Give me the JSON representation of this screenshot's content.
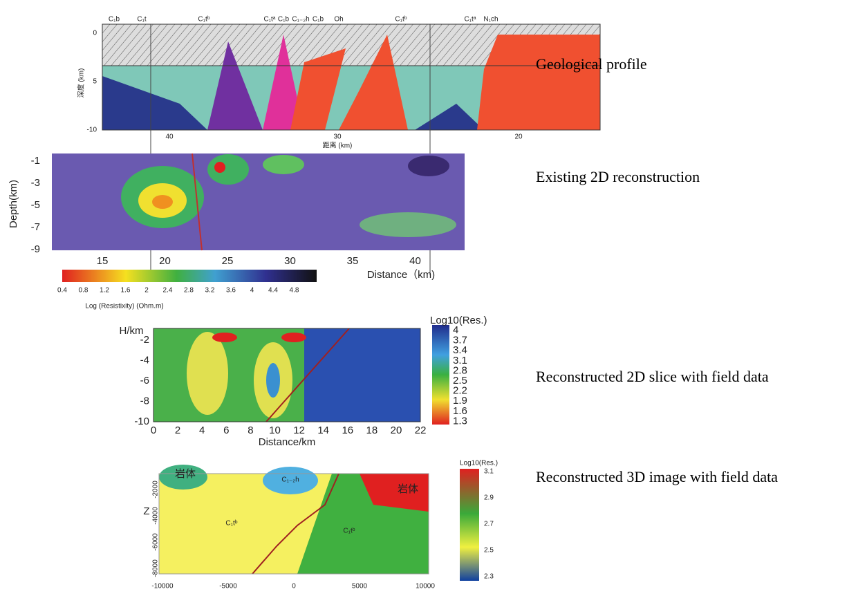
{
  "panels": [
    {
      "caption": "Geological profile",
      "y_axis_label": "深度 (km)",
      "x_axis_label": "距离 (km)",
      "y_ticks": [
        "0",
        "5",
        "-10"
      ],
      "x_ticks": [
        "40",
        "30",
        "20"
      ],
      "annotations": [
        "C₁b",
        "C₁t",
        "C₁tᵇ",
        "C₁tᵃ",
        "C₁b",
        "C₁₋₂h",
        "C₁b",
        "Oh",
        "C₁tᵇ",
        "C₁tᵃ",
        "N₁ch"
      ]
    },
    {
      "caption": "Existing 2D reconstruction",
      "y_axis_label": "Depth(km)",
      "x_axis_label": "Distance（km)",
      "y_ticks": [
        "-1",
        "-3",
        "-5",
        "-7",
        "-9"
      ],
      "x_ticks": [
        "15",
        "20",
        "25",
        "30",
        "35",
        "40"
      ],
      "colorbar": {
        "title": "Log (Resistixity) (Ohm.m)",
        "ticks": [
          "0.4",
          "0.8",
          "1.2",
          "1.6",
          "2",
          "2.4",
          "2.8",
          "3.2",
          "3.6",
          "4",
          "4.4",
          "4.8"
        ]
      }
    },
    {
      "caption": "Reconstructed 2D slice  with field data",
      "y_axis_label": "H/km",
      "x_axis_label": "Distance/km",
      "y_ticks": [
        "-2",
        "-4",
        "-6",
        "-8",
        "-10"
      ],
      "x_ticks": [
        "0",
        "2",
        "4",
        "6",
        "8",
        "10",
        "12",
        "14",
        "16",
        "18",
        "20",
        "22"
      ],
      "colorbar": {
        "title": "Log10(Res.)",
        "ticks": [
          "4",
          "3.7",
          "3.4",
          "3.1",
          "2.8",
          "2.5",
          "2.2",
          "1.9",
          "1.6",
          "1.3"
        ]
      }
    },
    {
      "caption": "Reconstructed 3D image with field data",
      "y_axis_label": "Z",
      "y_ticks": [
        "-2000",
        "-4000",
        "-6000",
        "-8000"
      ],
      "x_ticks": [
        "-10000",
        "-5000",
        "0",
        "5000",
        "10000"
      ],
      "annotations": [
        "岩体",
        "C₁₋₂h",
        "岩体",
        "C₁tᵇ",
        "C₁tᵇ"
      ],
      "colorbar": {
        "title": "Log10(Res.)",
        "ticks": [
          "3.1",
          "2.9",
          "2.7",
          "2.5",
          "2.3"
        ]
      }
    }
  ]
}
